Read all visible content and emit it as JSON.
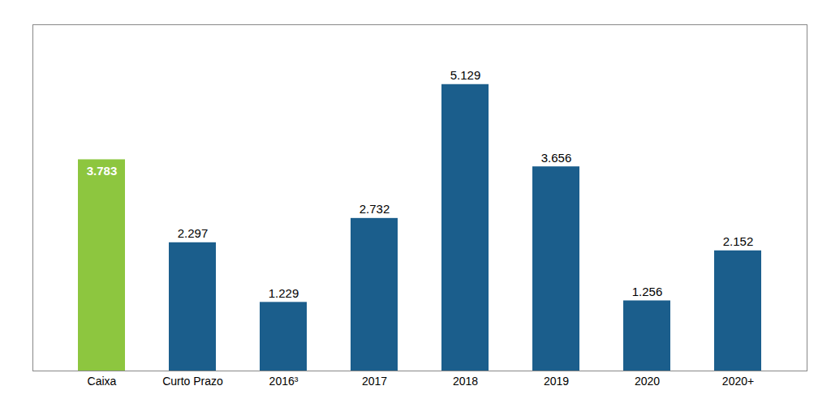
{
  "chart_data": {
    "type": "bar",
    "categories": [
      "Caixa",
      "Curto Prazo",
      "2016³",
      "2017",
      "2018",
      "2019",
      "2020",
      "2020+"
    ],
    "values": [
      3.783,
      2.297,
      1.229,
      2.732,
      5.129,
      3.656,
      1.256,
      2.152
    ],
    "colors": [
      "#8DC63F",
      "#1B5E8C",
      "#1B5E8C",
      "#1B5E8C",
      "#1B5E8C",
      "#1B5E8C",
      "#1B5E8C",
      "#1B5E8C"
    ],
    "ylim": [
      0,
      6.2
    ],
    "grid": false,
    "data_labels": true,
    "tick_labels": "x"
  }
}
